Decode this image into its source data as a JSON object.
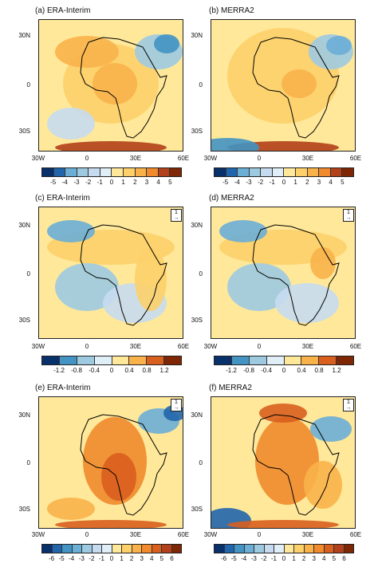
{
  "panels": [
    {
      "title": "(a) ERA-Interim",
      "lat_labels": [
        "30N",
        "0",
        "30S"
      ],
      "lon_labels": [
        "30W",
        "0",
        "30E",
        "60E"
      ],
      "colorbar_ticks": [
        "-5",
        "-4",
        "-3",
        "-2",
        "-1",
        "0",
        "1",
        "2",
        "3",
        "4",
        "5"
      ]
    },
    {
      "title": "(b) MERRA2",
      "lat_labels": [
        "30N",
        "0",
        "30S"
      ],
      "lon_labels": [
        "30W",
        "0",
        "30E",
        "60E"
      ],
      "colorbar_ticks": [
        "-5",
        "-4",
        "-3",
        "-2",
        "-1",
        "0",
        "1",
        "2",
        "3",
        "4",
        "5"
      ]
    },
    {
      "title": "(c) ERA-Interim",
      "lat_labels": [
        "30N",
        "0",
        "30S"
      ],
      "lon_labels": [
        "30W",
        "0",
        "30E",
        "60E"
      ],
      "colorbar_ticks": [
        "-1.2",
        "-0.8",
        "-0.4",
        "0",
        "0.4",
        "0.8",
        "1.2"
      ],
      "reference_vector": "1"
    },
    {
      "title": "(d) MERRA2",
      "lat_labels": [
        "30N",
        "0",
        "30S"
      ],
      "lon_labels": [
        "30W",
        "0",
        "30E",
        "60E"
      ],
      "colorbar_ticks": [
        "-1.2",
        "-0.8",
        "-0.4",
        "0",
        "0.4",
        "0.8",
        "1.2"
      ],
      "reference_vector": "1"
    },
    {
      "title": "(e) ERA-Interim",
      "lat_labels": [
        "30N",
        "0",
        "30S"
      ],
      "lon_labels": [
        "30W",
        "0",
        "30E",
        "60E"
      ],
      "colorbar_ticks": [
        "-6",
        "-5",
        "-4",
        "-3",
        "-2",
        "-1",
        "0",
        "1",
        "2",
        "3",
        "4",
        "5",
        "6"
      ],
      "reference_vector": "1"
    },
    {
      "title": "(f) MERRA2",
      "lat_labels": [
        "30N",
        "0",
        "30S"
      ],
      "lon_labels": [
        "30W",
        "0",
        "30E",
        "60E"
      ],
      "colorbar_ticks": [
        "-6",
        "-5",
        "-4",
        "-3",
        "-2",
        "-1",
        "0",
        "1",
        "2",
        "3",
        "4",
        "5",
        "6"
      ],
      "reference_vector": "1"
    }
  ],
  "palette": [
    "#08306b",
    "#2166ac",
    "#4393c3",
    "#6baed6",
    "#9ecae1",
    "#c6dbef",
    "#e0eef7",
    "#fff7d6",
    "#ffe89a",
    "#fdd06a",
    "#f9b24a",
    "#f08a2c",
    "#d95f1e",
    "#b2401a",
    "#7f2704"
  ],
  "land_color": "#000000"
}
